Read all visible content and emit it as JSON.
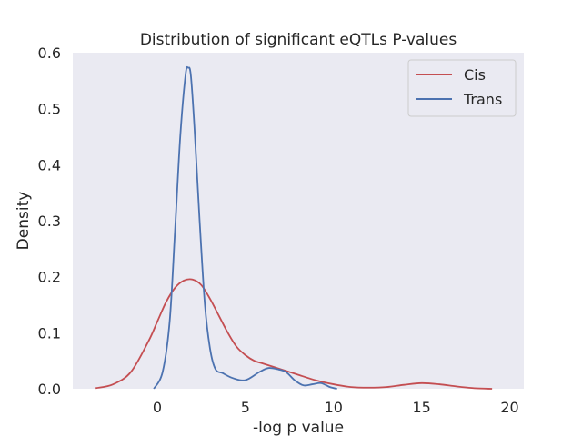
{
  "chart_data": {
    "type": "line",
    "title": "Distribution of significant eQTLs P-values",
    "xlabel": "-log p value",
    "ylabel": "Density",
    "xlim": [
      -4.8,
      20.8
    ],
    "ylim": [
      0,
      0.6
    ],
    "xticks": [
      0,
      5,
      10,
      15,
      20
    ],
    "yticks": [
      0.0,
      0.1,
      0.2,
      0.3,
      0.4,
      0.5,
      0.6
    ],
    "grid": false,
    "legend_position": "top-right",
    "background": "#EAEAF2",
    "series": [
      {
        "name": "Cis",
        "color": "#C44E52",
        "x": [
          -3.5,
          -2.5,
          -1.5,
          -0.5,
          0,
          0.5,
          1.0,
          1.5,
          2.0,
          2.5,
          3.0,
          3.5,
          4.0,
          4.5,
          5.0,
          5.5,
          6.0,
          7.0,
          8.0,
          9.0,
          10.0,
          11.0,
          12.0,
          13.0,
          14.0,
          15.0,
          16.0,
          17.0,
          18.0,
          19.0
        ],
        "y": [
          0.001,
          0.008,
          0.03,
          0.085,
          0.12,
          0.155,
          0.18,
          0.193,
          0.195,
          0.185,
          0.16,
          0.13,
          0.1,
          0.075,
          0.06,
          0.05,
          0.045,
          0.035,
          0.025,
          0.015,
          0.008,
          0.003,
          0.002,
          0.003,
          0.007,
          0.01,
          0.008,
          0.004,
          0.001,
          0.0
        ]
      },
      {
        "name": "Trans",
        "color": "#4C72B0",
        "x": [
          -0.2,
          0.3,
          0.7,
          1.0,
          1.3,
          1.6,
          1.75,
          1.9,
          2.1,
          2.4,
          2.7,
          3.0,
          3.3,
          3.7,
          4.2,
          4.8,
          5.2,
          5.8,
          6.3,
          6.8,
          7.3,
          7.8,
          8.3,
          8.8,
          9.3,
          9.8,
          10.2
        ],
        "y": [
          0.0,
          0.03,
          0.12,
          0.28,
          0.45,
          0.56,
          0.573,
          0.56,
          0.47,
          0.3,
          0.15,
          0.07,
          0.035,
          0.028,
          0.02,
          0.015,
          0.018,
          0.03,
          0.037,
          0.035,
          0.03,
          0.015,
          0.006,
          0.008,
          0.01,
          0.003,
          0.0
        ]
      }
    ]
  }
}
